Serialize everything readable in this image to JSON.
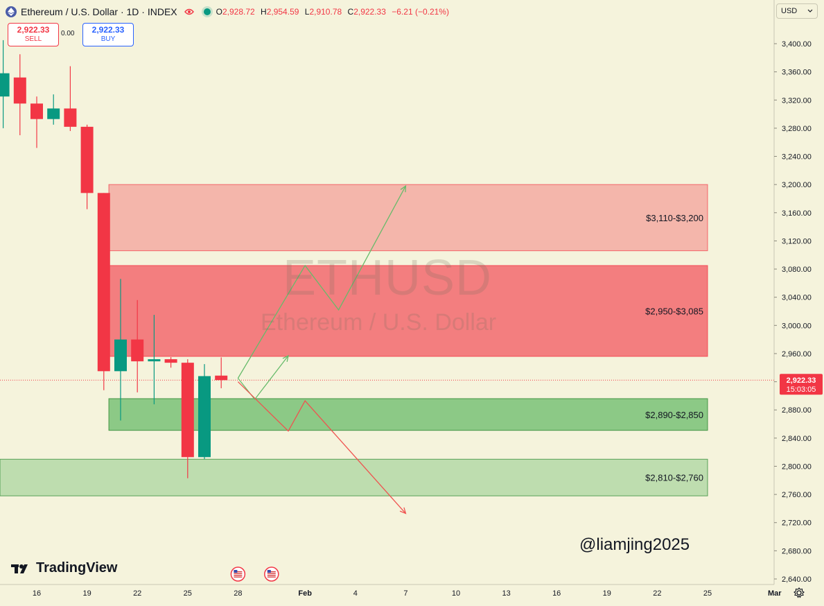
{
  "header": {
    "title": "Ethereum / U.S. Dollar · 1D · INDEX",
    "ohlc": [
      {
        "k": "O",
        "v": "2,928.72"
      },
      {
        "k": "H",
        "v": "2,954.59"
      },
      {
        "k": "L",
        "v": "2,910.78"
      },
      {
        "k": "C",
        "v": "2,922.33"
      }
    ],
    "change": "−6.21 (−0.21%)"
  },
  "trade": {
    "sell_price": "2,922.33",
    "sell_label": "SELL",
    "spread": "0.00",
    "buy_price": "2,922.33",
    "buy_label": "BUY"
  },
  "currency_button": "USD",
  "watermark": {
    "symbol": "ETHUSD",
    "name": "Ethereum / U.S. Dollar"
  },
  "brand": "TradingView",
  "author": "@liamjing2025",
  "price_label": {
    "price": "2,922.33",
    "countdown": "15:03:05"
  },
  "colors": {
    "up": "#089981",
    "down": "#f23645",
    "resistance_zone": "#f23645",
    "support_zone": "#4caf50",
    "background": "#f5f3dc"
  },
  "chart_data": {
    "type": "candlestick",
    "price_axis": {
      "ylim": [
        2620,
        3440
      ],
      "ticks": [
        2640,
        2680,
        2720,
        2760,
        2800,
        2840,
        2880,
        2920,
        2960,
        3000,
        3040,
        3080,
        3120,
        3160,
        3200,
        3240,
        3280,
        3320,
        3360,
        3400
      ],
      "tick_labels": [
        "2,640.00",
        "2,680.00",
        "2,720.00",
        "2,760.00",
        "2,800.00",
        "2,840.00",
        "2,880.00",
        "2,920.00",
        "2,960.00",
        "3,000.00",
        "3,040.00",
        "3,080.00",
        "3,120.00",
        "3,160.00",
        "3,200.00",
        "3,240.00",
        "3,280.00",
        "3,320.00",
        "3,360.00",
        "3,400.00"
      ]
    },
    "time_axis": {
      "labels": [
        {
          "day": 0,
          "text": "16"
        },
        {
          "day": 3,
          "text": "19"
        },
        {
          "day": 6,
          "text": "22"
        },
        {
          "day": 9,
          "text": "25"
        },
        {
          "day": 12,
          "text": "28"
        },
        {
          "day": 16,
          "text": "Feb"
        },
        {
          "day": 19,
          "text": "4"
        },
        {
          "day": 22,
          "text": "7"
        },
        {
          "day": 25,
          "text": "10"
        },
        {
          "day": 28,
          "text": "13"
        },
        {
          "day": 31,
          "text": "16"
        },
        {
          "day": 34,
          "text": "19"
        },
        {
          "day": 37,
          "text": "22"
        },
        {
          "day": 40,
          "text": "25"
        },
        {
          "day": 44,
          "text": "Mar"
        }
      ]
    },
    "candles": [
      {
        "day": -2,
        "o": 3325,
        "h": 3405,
        "l": 3280,
        "c": 3358
      },
      {
        "day": -1,
        "o": 3352,
        "h": 3385,
        "l": 3270,
        "c": 3315
      },
      {
        "day": 0,
        "o": 3315,
        "h": 3325,
        "l": 3252,
        "c": 3293
      },
      {
        "day": 1,
        "o": 3293,
        "h": 3328,
        "l": 3285,
        "c": 3308
      },
      {
        "day": 2,
        "o": 3308,
        "h": 3368,
        "l": 3276,
        "c": 3282
      },
      {
        "day": 3,
        "o": 3282,
        "h": 3285,
        "l": 3165,
        "c": 3188
      },
      {
        "day": 4,
        "o": 3188,
        "h": 3188,
        "l": 2908,
        "c": 2935
      },
      {
        "day": 5,
        "o": 2935,
        "h": 3066,
        "l": 2865,
        "c": 2980
      },
      {
        "day": 6,
        "o": 2980,
        "h": 3036,
        "l": 2905,
        "c": 2949
      },
      {
        "day": 7,
        "o": 2949,
        "h": 3015,
        "l": 2888,
        "c": 2952
      },
      {
        "day": 8,
        "o": 2952,
        "h": 2955,
        "l": 2940,
        "c": 2947
      },
      {
        "day": 9,
        "o": 2947,
        "h": 2952,
        "l": 2783,
        "c": 2813
      },
      {
        "day": 10,
        "o": 2813,
        "h": 2945,
        "l": 2810,
        "c": 2928
      },
      {
        "day": 11,
        "o": 2928.72,
        "h": 2954.59,
        "l": 2910.78,
        "c": 2922.33
      }
    ],
    "current_price": 2922.33,
    "zones": [
      {
        "label": "$3,110-$3,200",
        "low": 3106,
        "high": 3200,
        "day_start": 4.3,
        "day_end": 40,
        "kind": "resistance"
      },
      {
        "label": "$2,950-$3,085",
        "low": 2956,
        "high": 3085,
        "day_start": 4.3,
        "day_end": 40,
        "kind": "resistance"
      },
      {
        "label": "$2,890-$2,850",
        "low": 2851,
        "high": 2896,
        "day_start": 4.3,
        "day_end": 40,
        "kind": "support"
      },
      {
        "label": "$2,810-$2,760",
        "low": 2758,
        "high": 2810,
        "day_start": -3,
        "day_end": 40,
        "kind": "support"
      }
    ],
    "projections": [
      {
        "kind": "bullish",
        "points": [
          [
            12,
            2925
          ],
          [
            13,
            2895
          ],
          [
            15,
            2957
          ]
        ]
      },
      {
        "kind": "bullish",
        "points": [
          [
            12,
            2925
          ],
          [
            16,
            3085
          ],
          [
            18,
            3022
          ],
          [
            22,
            3198
          ]
        ]
      },
      {
        "kind": "bearish",
        "points": [
          [
            12,
            2920
          ],
          [
            15,
            2850
          ],
          [
            16,
            2893
          ],
          [
            22,
            2733
          ]
        ]
      }
    ],
    "events": [
      {
        "day": 12
      },
      {
        "day": 14
      }
    ]
  }
}
